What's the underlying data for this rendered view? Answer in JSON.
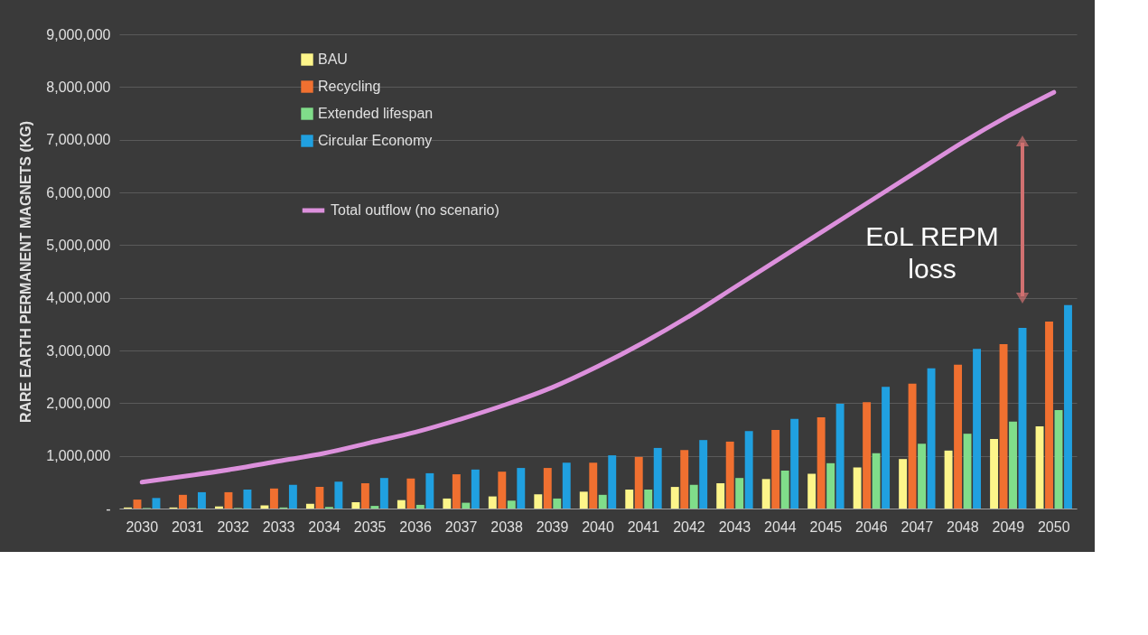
{
  "chart_data": {
    "type": "bar",
    "ylabel": "RARE EARTH PERMANENT MAGNETS (KG)",
    "categories": [
      "2030",
      "2031",
      "2032",
      "2033",
      "2034",
      "2035",
      "2036",
      "2037",
      "2038",
      "2039",
      "2040",
      "2041",
      "2042",
      "2043",
      "2044",
      "2045",
      "2046",
      "2047",
      "2048",
      "2049",
      "2050"
    ],
    "series": [
      {
        "name": "BAU",
        "color": "#fdf58a",
        "values": [
          20000,
          20000,
          40000,
          60000,
          90000,
          120000,
          160000,
          190000,
          230000,
          270000,
          320000,
          360000,
          410000,
          480000,
          560000,
          660000,
          780000,
          940000,
          1100000,
          1320000,
          1560000
        ]
      },
      {
        "name": "Recycling",
        "color": "#f07030",
        "values": [
          170000,
          260000,
          310000,
          380000,
          410000,
          480000,
          570000,
          650000,
          700000,
          770000,
          870000,
          980000,
          1110000,
          1270000,
          1490000,
          1730000,
          2020000,
          2370000,
          2730000,
          3120000,
          3550000
        ]
      },
      {
        "name": "Extended lifespan",
        "color": "#80dd8a",
        "values": [
          10000,
          10000,
          10000,
          20000,
          30000,
          50000,
          70000,
          110000,
          150000,
          190000,
          260000,
          360000,
          450000,
          580000,
          720000,
          860000,
          1050000,
          1230000,
          1420000,
          1650000,
          1870000
        ]
      },
      {
        "name": "Circular Economy",
        "color": "#20a0e0",
        "values": [
          200000,
          310000,
          360000,
          450000,
          510000,
          580000,
          670000,
          740000,
          770000,
          870000,
          1010000,
          1150000,
          1300000,
          1470000,
          1700000,
          1990000,
          2310000,
          2660000,
          3030000,
          3430000,
          3860000
        ]
      },
      {
        "name": "Total outflow (no scenario)",
        "type": "line",
        "color": "#dc90dc",
        "values": [
          500000,
          620000,
          750000,
          900000,
          1050000,
          1250000,
          1450000,
          1700000,
          1980000,
          2300000,
          2700000,
          3150000,
          3650000,
          4200000,
          4750000,
          5300000,
          5850000,
          6400000,
          6950000,
          7450000,
          7900000
        ]
      }
    ],
    "ylim": [
      0,
      9000000
    ],
    "yticks": [
      {
        "value": 0,
        "label": "-"
      },
      {
        "value": 1000000,
        "label": "1,000,000"
      },
      {
        "value": 2000000,
        "label": "2,000,000"
      },
      {
        "value": 3000000,
        "label": "3,000,000"
      },
      {
        "value": 4000000,
        "label": "4,000,000"
      },
      {
        "value": 5000000,
        "label": "5,000,000"
      },
      {
        "value": 6000000,
        "label": "6,000,000"
      },
      {
        "value": 7000000,
        "label": "7,000,000"
      },
      {
        "value": 8000000,
        "label": "8,000,000"
      },
      {
        "value": 9000000,
        "label": "9,000,000"
      }
    ],
    "grid": "y",
    "legend": "top left",
    "annotations": [
      "EoL REPM loss"
    ]
  }
}
